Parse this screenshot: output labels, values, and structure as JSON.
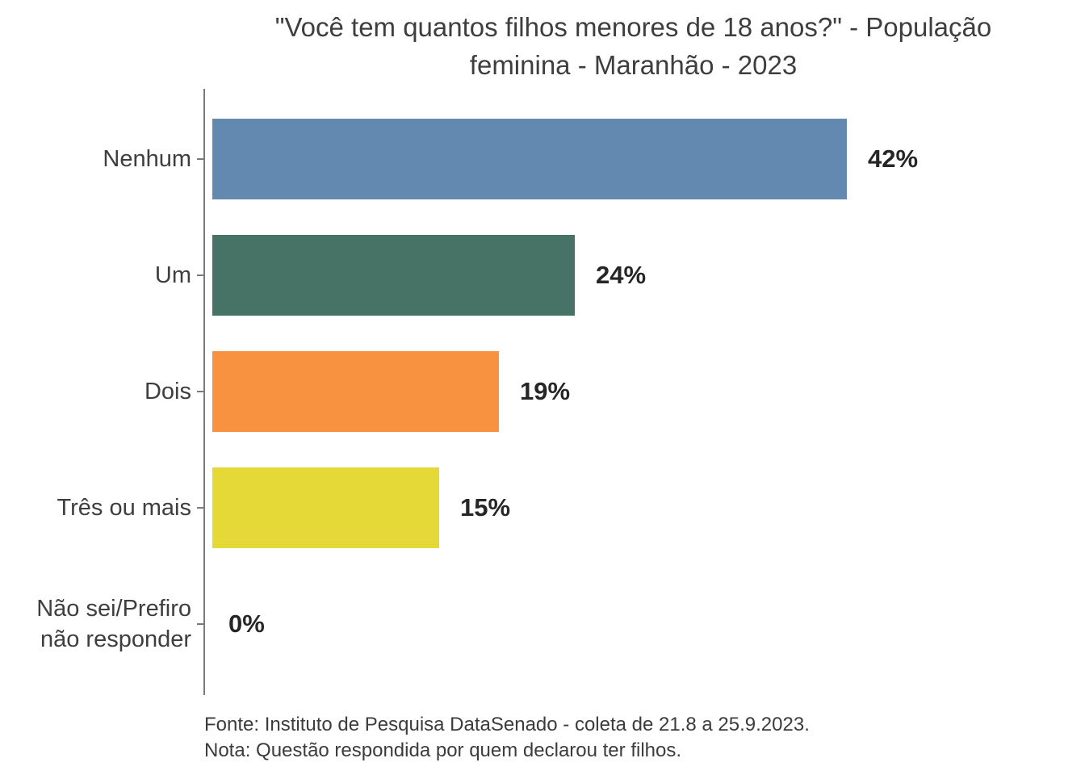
{
  "chart_data": {
    "type": "bar",
    "orientation": "horizontal",
    "title": "\"Você tem quantos filhos menores de 18 anos?\" - População feminina - Maranhão - 2023",
    "title_lines": [
      "\"Você tem quantos filhos menores de 18 anos?\" - População",
      "feminina - Maranhão - 2023"
    ],
    "categories": [
      "Nenhum",
      "Um",
      "Dois",
      "Três ou mais",
      "Não sei/Prefiro não responder"
    ],
    "values": [
      42,
      24,
      19,
      15,
      0
    ],
    "value_labels": [
      "42%",
      "24%",
      "19%",
      "15%",
      "0%"
    ],
    "unit": "%",
    "bar_colors": [
      "#6389b0",
      "#477366",
      "#f89140",
      "#e4d936",
      "none"
    ],
    "xlim": [
      0,
      45
    ],
    "grid": false,
    "legend": false,
    "axis_color": "#7a7a7a",
    "value_text_color": "#262626",
    "label_text_color": "#3e3e3e"
  },
  "footer": {
    "source": "Fonte: Instituto de Pesquisa DataSenado - coleta de 21.8 a 25.9.2023.",
    "note": "Nota: Questão respondida por quem declarou ter filhos."
  }
}
